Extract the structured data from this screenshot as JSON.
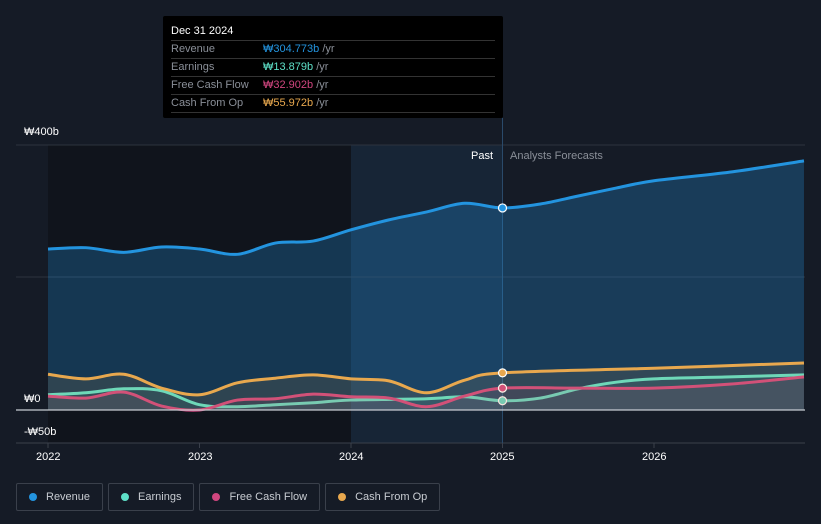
{
  "tooltip": {
    "date": "Dec 31 2024",
    "rows": [
      {
        "label": "Revenue",
        "value": "₩304.773b",
        "unit": " /yr",
        "color": "#2394df"
      },
      {
        "label": "Earnings",
        "value": "₩13.879b",
        "unit": " /yr",
        "color": "#5ee0c8"
      },
      {
        "label": "Free Cash Flow",
        "value": "₩32.902b",
        "unit": " /yr",
        "color": "#d0467f"
      },
      {
        "label": "Cash From Op",
        "value": "₩55.972b",
        "unit": " /yr",
        "color": "#e8a84e"
      }
    ]
  },
  "labels": {
    "past": "Past",
    "forecast": "Analysts Forecasts"
  },
  "chart_data": {
    "type": "line",
    "ylim": [
      -50,
      400
    ],
    "xlim": [
      2021.9,
      2027
    ],
    "yticks": [
      "₩400b",
      "₩0",
      "-₩50b"
    ],
    "ytick_values": [
      400,
      0,
      -50
    ],
    "xticks": [
      "2022",
      "2023",
      "2024",
      "2025",
      "2026"
    ],
    "xtick_values": [
      2022,
      2023,
      2024,
      2025,
      2026
    ],
    "divider_x": 2025,
    "legend": "bottom-left",
    "series": [
      {
        "name": "Revenue",
        "color": "#2394df",
        "x": [
          2022,
          2022.25,
          2022.5,
          2022.75,
          2023,
          2023.25,
          2023.5,
          2023.75,
          2024,
          2024.25,
          2024.5,
          2024.75,
          2025,
          2025.25,
          2025.5,
          2025.75,
          2026,
          2026.5,
          2026.99
        ],
        "y": [
          243,
          245,
          238,
          246,
          243,
          235,
          252,
          255,
          272,
          287,
          299,
          312,
          305,
          311,
          323,
          335,
          346,
          359,
          376
        ]
      },
      {
        "name": "Earnings",
        "color": "#5ee0c8",
        "x": [
          2022,
          2022.25,
          2022.5,
          2022.75,
          2023,
          2023.25,
          2023.5,
          2023.75,
          2024,
          2024.5,
          2024.75,
          2025,
          2025.25,
          2025.5,
          2025.75,
          2026,
          2026.5,
          2026.99
        ],
        "y": [
          23,
          26,
          32,
          29,
          8,
          5,
          8,
          11,
          15,
          17,
          20,
          14,
          18,
          32,
          42,
          47,
          50,
          53
        ]
      },
      {
        "name": "Free Cash Flow",
        "color": "#d0467f",
        "x": [
          2022,
          2022.25,
          2022.5,
          2022.75,
          2023,
          2023.25,
          2023.5,
          2023.75,
          2024,
          2024.25,
          2024.5,
          2024.75,
          2025,
          2025.5,
          2026,
          2026.5,
          2026.99
        ],
        "y": [
          21,
          18,
          27,
          6,
          0,
          15,
          17,
          24,
          20,
          18,
          5,
          21,
          33,
          33,
          33,
          39,
          50
        ]
      },
      {
        "name": "Cash From Op",
        "color": "#e8a84e",
        "x": [
          2022,
          2022.25,
          2022.5,
          2022.75,
          2023,
          2023.25,
          2023.5,
          2023.75,
          2024,
          2024.25,
          2024.5,
          2024.75,
          2025,
          2026,
          2026.99
        ],
        "y": [
          54,
          47,
          54,
          33,
          23,
          41,
          48,
          53,
          47,
          44,
          26,
          45,
          56,
          63,
          71
        ]
      }
    ]
  }
}
